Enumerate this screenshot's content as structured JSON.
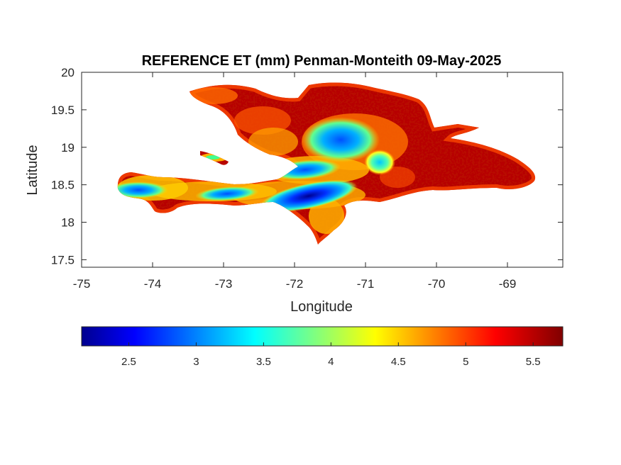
{
  "chart_data": {
    "type": "heatmap",
    "title": "REFERENCE ET (mm) Penman-Monteith 09-May-2025",
    "xlabel": "Longitude",
    "ylabel": "Latitude",
    "xlim": [
      -75,
      -68.22
    ],
    "ylim": [
      17.4,
      20
    ],
    "xticks": [
      "-75",
      "-74",
      "-73",
      "-72",
      "-71",
      "-70",
      "-69"
    ],
    "yticks": [
      "17.5",
      "18",
      "18.5",
      "19",
      "19.5",
      "20"
    ],
    "colormap": "jet",
    "clim": [
      2.15,
      5.72
    ],
    "colorbar_ticks": [
      "2.5",
      "3",
      "3.5",
      "4",
      "4.5",
      "5",
      "5.5"
    ],
    "colorbar_location": "below",
    "grid": false,
    "low_value_zones": [
      {
        "lon": -71.8,
        "lat": 18.35,
        "value": 2.4
      },
      {
        "lon": -71.35,
        "lat": 19.1,
        "value": 3.3
      },
      {
        "lon": -71.85,
        "lat": 18.7,
        "value": 3.1
      },
      {
        "lon": -72.95,
        "lat": 18.38,
        "value": 3.4
      },
      {
        "lon": -74.2,
        "lat": 18.43,
        "value": 3.4
      },
      {
        "lon": -70.8,
        "lat": 18.8,
        "value": 3.6
      }
    ],
    "typical_value": 5.4,
    "coastal_value": 4.8
  }
}
